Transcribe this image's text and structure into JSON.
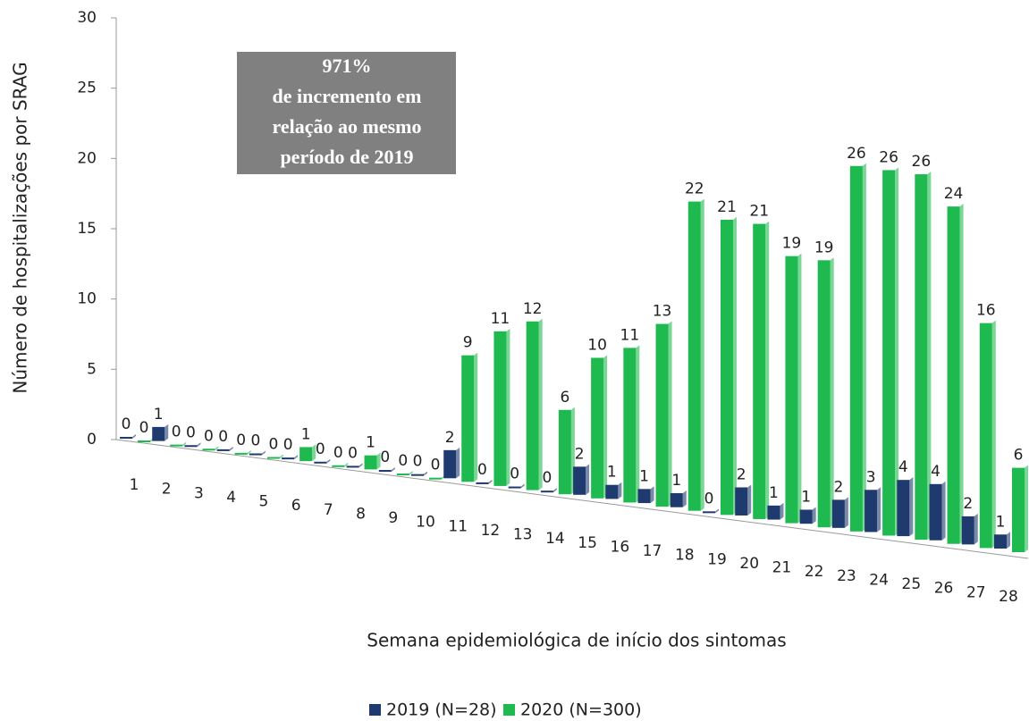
{
  "chart_data": {
    "type": "bar",
    "x_label": "Semana epidemiológica de início dos sintomas",
    "y_label": "Número de hospitalizações por SRAG",
    "annotation": [
      "971%",
      "de incremento em",
      "relação ao mesmo",
      "período de 2019"
    ],
    "categories": [
      1,
      2,
      3,
      4,
      5,
      6,
      7,
      8,
      9,
      10,
      11,
      12,
      13,
      14,
      15,
      16,
      17,
      18,
      19,
      20,
      21,
      22,
      23,
      24,
      25,
      26,
      27,
      28
    ],
    "series": [
      {
        "name": "2019 (N=28)",
        "color": "#1f3a6e",
        "values": [
          0,
          1,
          0,
          0,
          0,
          0,
          0,
          0,
          0,
          0,
          2,
          0,
          0,
          0,
          2,
          1,
          1,
          1,
          0,
          2,
          1,
          1,
          2,
          3,
          4,
          4,
          2,
          1
        ]
      },
      {
        "name": "2020 (N=300)",
        "color": "#1fba4f",
        "values": [
          0,
          0,
          0,
          0,
          0,
          1,
          0,
          1,
          0,
          0,
          9,
          11,
          12,
          6,
          10,
          11,
          13,
          22,
          21,
          21,
          19,
          19,
          26,
          26,
          26,
          24,
          16,
          6
        ]
      }
    ],
    "ylim": [
      0,
      30
    ],
    "yticks": [
      0,
      5,
      10,
      15,
      20,
      25,
      30
    ],
    "grid": false,
    "legend": "bottom"
  }
}
